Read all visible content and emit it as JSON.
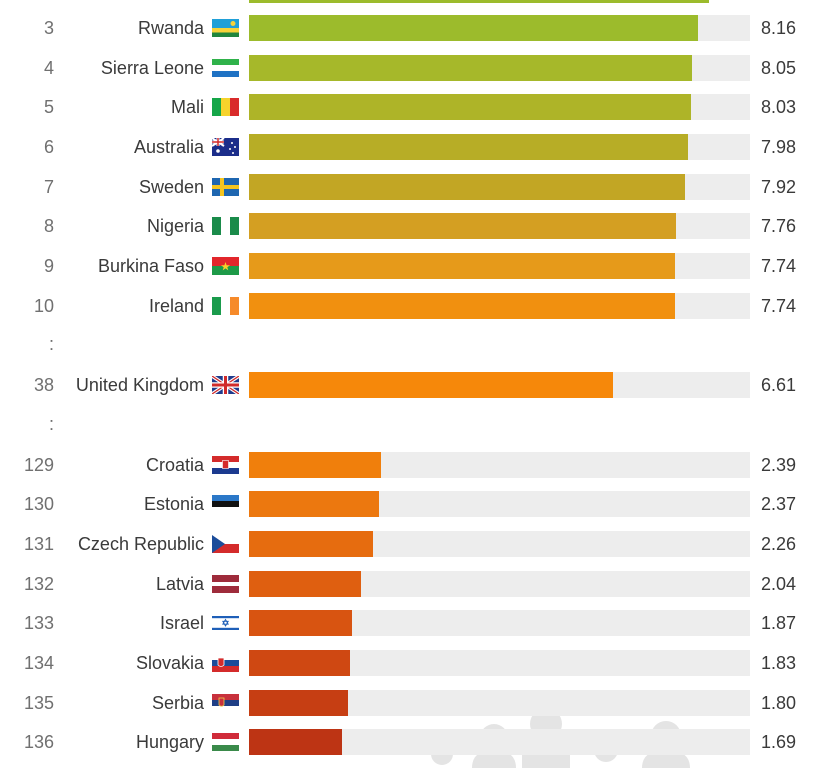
{
  "chart_data": {
    "type": "bar",
    "orientation": "horizontal",
    "axis_max": 9.1,
    "rows": [
      {
        "rank": "3",
        "country": "Rwanda",
        "flag": "rwanda-flag-icon",
        "value": 8.16,
        "label": "8.16",
        "color": "#9cbb2c"
      },
      {
        "rank": "4",
        "country": "Sierra Leone",
        "flag": "sierra-leone-flag-icon",
        "value": 8.05,
        "label": "8.05",
        "color": "#a6b82a"
      },
      {
        "rank": "5",
        "country": "Mali",
        "flag": "mali-flag-icon",
        "value": 8.03,
        "label": "8.03",
        "color": "#aeb428"
      },
      {
        "rank": "6",
        "country": "Australia",
        "flag": "australia-flag-icon",
        "value": 7.98,
        "label": "7.98",
        "color": "#b7ad26"
      },
      {
        "rank": "7",
        "country": "Sweden",
        "flag": "sweden-flag-icon",
        "value": 7.92,
        "label": "7.92",
        "color": "#c2a624"
      },
      {
        "rank": "8",
        "country": "Nigeria",
        "flag": "nigeria-flag-icon",
        "value": 7.76,
        "label": "7.76",
        "color": "#d49f22"
      },
      {
        "rank": "9",
        "country": "Burkina Faso",
        "flag": "burkina-faso-flag-icon",
        "value": 7.74,
        "label": "7.74",
        "color": "#e69a1a"
      },
      {
        "rank": "10",
        "country": "Ireland",
        "flag": "ireland-flag-icon",
        "value": 7.74,
        "label": "7.74",
        "color": "#f1900f"
      },
      {
        "rank": "38",
        "country": "United Kingdom",
        "flag": "uk-flag-icon",
        "value": 6.61,
        "label": "6.61",
        "color": "#f6880a"
      },
      {
        "rank": "129",
        "country": "Croatia",
        "flag": "croatia-flag-icon",
        "value": 2.39,
        "label": "2.39",
        "color": "#f07f0c"
      },
      {
        "rank": "130",
        "country": "Estonia",
        "flag": "estonia-flag-icon",
        "value": 2.37,
        "label": "2.37",
        "color": "#ec780f"
      },
      {
        "rank": "131",
        "country": "Czech Republic",
        "flag": "czech-flag-icon",
        "value": 2.26,
        "label": "2.26",
        "color": "#e66c0f"
      },
      {
        "rank": "132",
        "country": "Latvia",
        "flag": "latvia-flag-icon",
        "value": 2.04,
        "label": "2.04",
        "color": "#df5f10"
      },
      {
        "rank": "133",
        "country": "Israel",
        "flag": "israel-flag-icon",
        "value": 1.87,
        "label": "1.87",
        "color": "#d85411"
      },
      {
        "rank": "134",
        "country": "Slovakia",
        "flag": "slovakia-flag-icon",
        "value": 1.83,
        "label": "1.83",
        "color": "#cf4812"
      },
      {
        "rank": "135",
        "country": "Serbia",
        "flag": "serbia-flag-icon",
        "value": 1.8,
        "label": "1.80",
        "color": "#c63e13"
      },
      {
        "rank": "136",
        "country": "Hungary",
        "flag": "hungary-flag-icon",
        "value": 1.69,
        "label": "1.69",
        "color": "#bd3414"
      }
    ],
    "gap_markers": [
      ":",
      ":"
    ]
  }
}
